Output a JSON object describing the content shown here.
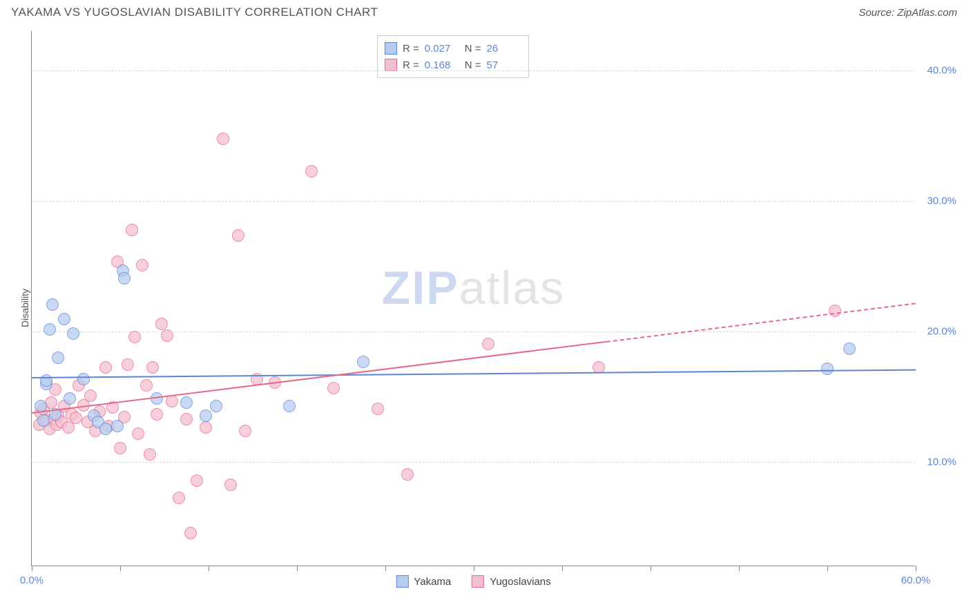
{
  "title": "YAKAMA VS YUGOSLAVIAN DISABILITY CORRELATION CHART",
  "source_label": "Source: ZipAtlas.com",
  "ylabel": "Disability",
  "watermark": {
    "part1": "ZIP",
    "part2": "atlas"
  },
  "chart": {
    "type": "scatter",
    "xlim": [
      0,
      60
    ],
    "ylim": [
      2,
      43
    ],
    "background_color": "#ffffff",
    "grid_color": "#d8d8d8",
    "axis_color": "#888888",
    "ytick_values": [
      10,
      20,
      30,
      40
    ],
    "ytick_labels": [
      "10.0%",
      "20.0%",
      "30.0%",
      "40.0%"
    ],
    "ytick_color": "#5b86d6",
    "xtick_values": [
      0,
      6,
      12,
      18,
      24,
      30,
      36,
      42,
      48,
      54,
      60
    ],
    "xaxis_start_label": "0.0%",
    "xaxis_end_label": "60.0%",
    "xaxis_label_color": "#5b86d6",
    "marker_radius": 9,
    "marker_stroke_width": 1.5,
    "marker_fill_opacity": 0.35
  },
  "series": {
    "yakama": {
      "label": "Yakama",
      "stroke": "#5b86d6",
      "fill": "#b7cdef",
      "r_value": "0.027",
      "n_value": "26",
      "regression": {
        "x1": 0,
        "y1": 16.5,
        "x2": 60,
        "y2": 17.1,
        "solid_until_x": 60
      },
      "points": [
        [
          0.6,
          14.2
        ],
        [
          0.8,
          13.1
        ],
        [
          1.0,
          15.9
        ],
        [
          1.0,
          16.2
        ],
        [
          1.2,
          20.1
        ],
        [
          1.4,
          22.0
        ],
        [
          1.6,
          13.6
        ],
        [
          1.8,
          17.9
        ],
        [
          2.2,
          20.9
        ],
        [
          2.6,
          14.8
        ],
        [
          2.8,
          19.8
        ],
        [
          3.5,
          16.3
        ],
        [
          4.2,
          13.5
        ],
        [
          4.5,
          13.0
        ],
        [
          5.0,
          12.5
        ],
        [
          5.8,
          12.7
        ],
        [
          6.2,
          24.6
        ],
        [
          6.3,
          24.0
        ],
        [
          8.5,
          14.8
        ],
        [
          10.5,
          14.5
        ],
        [
          11.8,
          13.5
        ],
        [
          12.5,
          14.2
        ],
        [
          17.5,
          14.2
        ],
        [
          22.5,
          17.6
        ],
        [
          54.0,
          17.1
        ],
        [
          55.5,
          18.6
        ]
      ]
    },
    "yugoslavians": {
      "label": "Yugoslavians",
      "stroke": "#e46a8a",
      "fill": "#f4c0cf",
      "r_value": "0.168",
      "n_value": "57",
      "regression": {
        "x1": 0,
        "y1": 13.8,
        "x2": 60,
        "y2": 22.2,
        "solid_until_x": 39
      },
      "points": [
        [
          0.5,
          12.8
        ],
        [
          0.6,
          13.7
        ],
        [
          0.8,
          14.0
        ],
        [
          1.0,
          13.1
        ],
        [
          1.2,
          12.5
        ],
        [
          1.3,
          14.5
        ],
        [
          1.5,
          13.2
        ],
        [
          1.6,
          15.5
        ],
        [
          1.7,
          12.8
        ],
        [
          1.8,
          13.5
        ],
        [
          2.0,
          13.0
        ],
        [
          2.2,
          14.2
        ],
        [
          2.5,
          12.6
        ],
        [
          2.7,
          13.6
        ],
        [
          3.0,
          13.3
        ],
        [
          3.2,
          15.8
        ],
        [
          3.5,
          14.3
        ],
        [
          3.8,
          13.0
        ],
        [
          4.0,
          15.0
        ],
        [
          4.3,
          12.3
        ],
        [
          4.6,
          13.8
        ],
        [
          5.0,
          17.2
        ],
        [
          5.2,
          12.7
        ],
        [
          5.5,
          14.1
        ],
        [
          5.8,
          25.3
        ],
        [
          6.0,
          11.0
        ],
        [
          6.3,
          13.4
        ],
        [
          6.5,
          17.4
        ],
        [
          6.8,
          27.7
        ],
        [
          7.0,
          19.5
        ],
        [
          7.2,
          12.1
        ],
        [
          7.5,
          25.0
        ],
        [
          7.8,
          15.8
        ],
        [
          8.0,
          10.5
        ],
        [
          8.2,
          17.2
        ],
        [
          8.5,
          13.6
        ],
        [
          8.8,
          20.5
        ],
        [
          9.2,
          19.6
        ],
        [
          9.5,
          14.6
        ],
        [
          10.0,
          7.2
        ],
        [
          10.5,
          13.2
        ],
        [
          10.8,
          4.5
        ],
        [
          11.2,
          8.5
        ],
        [
          11.8,
          12.6
        ],
        [
          13.0,
          34.7
        ],
        [
          13.5,
          8.2
        ],
        [
          14.0,
          27.3
        ],
        [
          14.5,
          12.3
        ],
        [
          15.3,
          16.3
        ],
        [
          16.5,
          16.0
        ],
        [
          19.0,
          32.2
        ],
        [
          20.5,
          15.6
        ],
        [
          23.5,
          14.0
        ],
        [
          25.5,
          9.0
        ],
        [
          31.0,
          19.0
        ],
        [
          38.5,
          17.2
        ],
        [
          54.5,
          21.5
        ]
      ]
    }
  },
  "stats_box": {
    "r_label": "R =",
    "n_label": "N =",
    "value_color": "#5b86d6",
    "label_color": "#555555"
  },
  "bottom_legend": {
    "items": [
      "yakama",
      "yugoslavians"
    ]
  }
}
